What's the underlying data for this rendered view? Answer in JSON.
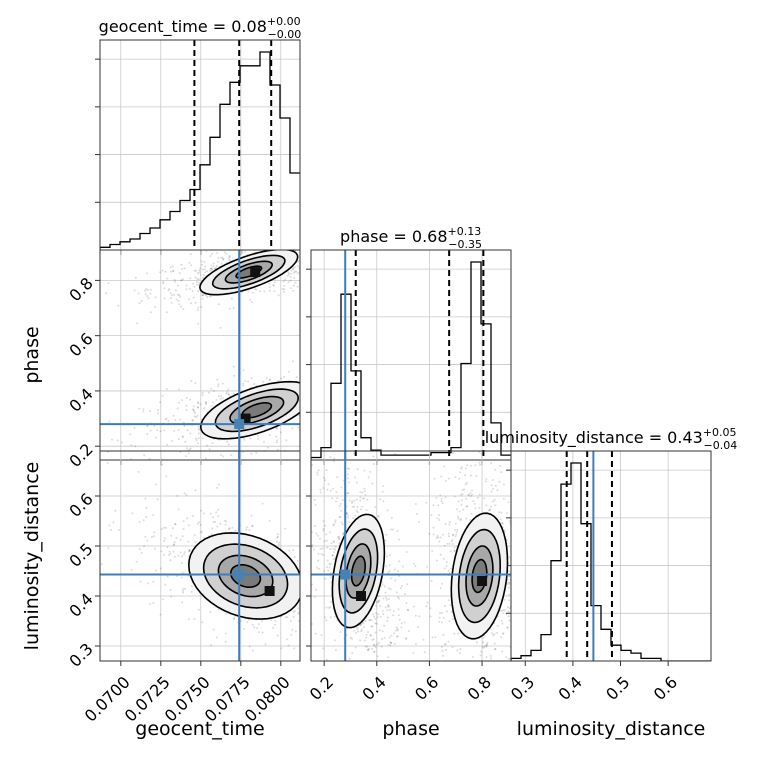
{
  "chart_data": {
    "type": "corner",
    "parameters": [
      {
        "name": "geocent_time",
        "label": "geocent_time",
        "range": [
          0.0687,
          0.0812
        ],
        "ticks": [
          0.07,
          0.0725,
          0.075,
          0.0775,
          0.08
        ],
        "tick_labels": [
          "0.0700",
          "0.0725",
          "0.0750",
          "0.0775",
          "0.0800"
        ],
        "title": {
          "main": "geocent_time = 0.08",
          "plus": "+0.00",
          "minus": "−0.00"
        },
        "quantiles": [
          0.0746,
          0.0774,
          0.0794
        ],
        "truth": 0.0774,
        "hist_edges_start": 0.0687,
        "hist_edges_step": 0.000625,
        "hist_values": [
          1,
          2,
          3,
          4,
          6,
          8,
          11,
          14,
          18,
          22,
          31,
          41,
          53,
          61,
          67,
          67,
          72,
          60,
          48,
          28
        ]
      },
      {
        "name": "phase",
        "label": "phase",
        "range": [
          0.15,
          0.91
        ],
        "ticks": [
          0.2,
          0.4,
          0.6,
          0.8
        ],
        "tick_labels": [
          "0.2",
          "0.4",
          "0.6",
          "0.8"
        ],
        "title": {
          "main": "phase = 0.68",
          "plus": "+0.13",
          "minus": "−0.35"
        },
        "quantiles": [
          0.32,
          0.675,
          0.805
        ],
        "truth": 0.28,
        "hist_edges_start": 0.15,
        "hist_edges_step": 0.038,
        "hist_values": [
          1,
          5,
          31,
          67,
          36,
          9,
          4,
          2,
          2,
          2,
          2,
          2,
          3,
          3,
          5,
          39,
          80,
          55,
          15,
          2
        ]
      },
      {
        "name": "luminosity_distance",
        "label": "luminosity_distance",
        "range": [
          0.27,
          0.69
        ],
        "ticks": [
          0.3,
          0.4,
          0.5,
          0.6
        ],
        "tick_labels": [
          "0.3",
          "0.4",
          "0.5",
          "0.6"
        ],
        "title": {
          "main": "luminosity_distance = 0.43",
          "plus": "+0.05",
          "minus": "−0.04"
        },
        "quantiles": [
          0.387,
          0.43,
          0.482
        ],
        "truth": 0.443,
        "hist_edges_start": 0.27,
        "hist_edges_step": 0.021,
        "hist_values": [
          1,
          2,
          4,
          10,
          38,
          67,
          75,
          52,
          21,
          12,
          6,
          4,
          3,
          1,
          1,
          0,
          0,
          0,
          0,
          0
        ]
      }
    ],
    "pairs": [
      {
        "row": 1,
        "col": 0,
        "modes": [
          {
            "x": 0.078,
            "y": 0.83,
            "sx": 0.0014,
            "sy": 0.025,
            "rho": 0.55,
            "peak": [
              0.0784,
              0.83
            ]
          },
          {
            "x": 0.0785,
            "y": 0.33,
            "sx": 0.0016,
            "sy": 0.035,
            "rho": 0.55,
            "peak": [
              0.0778,
              0.3
            ]
          }
        ]
      },
      {
        "row": 2,
        "col": 0,
        "modes": [
          {
            "x": 0.0778,
            "y": 0.44,
            "sx": 0.0016,
            "sy": 0.035,
            "rho": -0.6,
            "peak": [
              0.0793,
              0.41
            ]
          }
        ]
      },
      {
        "row": 2,
        "col": 1,
        "modes": [
          {
            "x": 0.33,
            "y": 0.45,
            "sx": 0.04,
            "sy": 0.05,
            "rho": -0.3,
            "peak": [
              0.34,
              0.4
            ]
          },
          {
            "x": 0.79,
            "y": 0.44,
            "sx": 0.045,
            "sy": 0.055,
            "rho": -0.2,
            "peak": [
              0.8,
              0.43
            ]
          }
        ]
      }
    ],
    "colors": {
      "truth": "#4682b4",
      "lines": "#000000",
      "grid": "#c8c8c8"
    }
  }
}
